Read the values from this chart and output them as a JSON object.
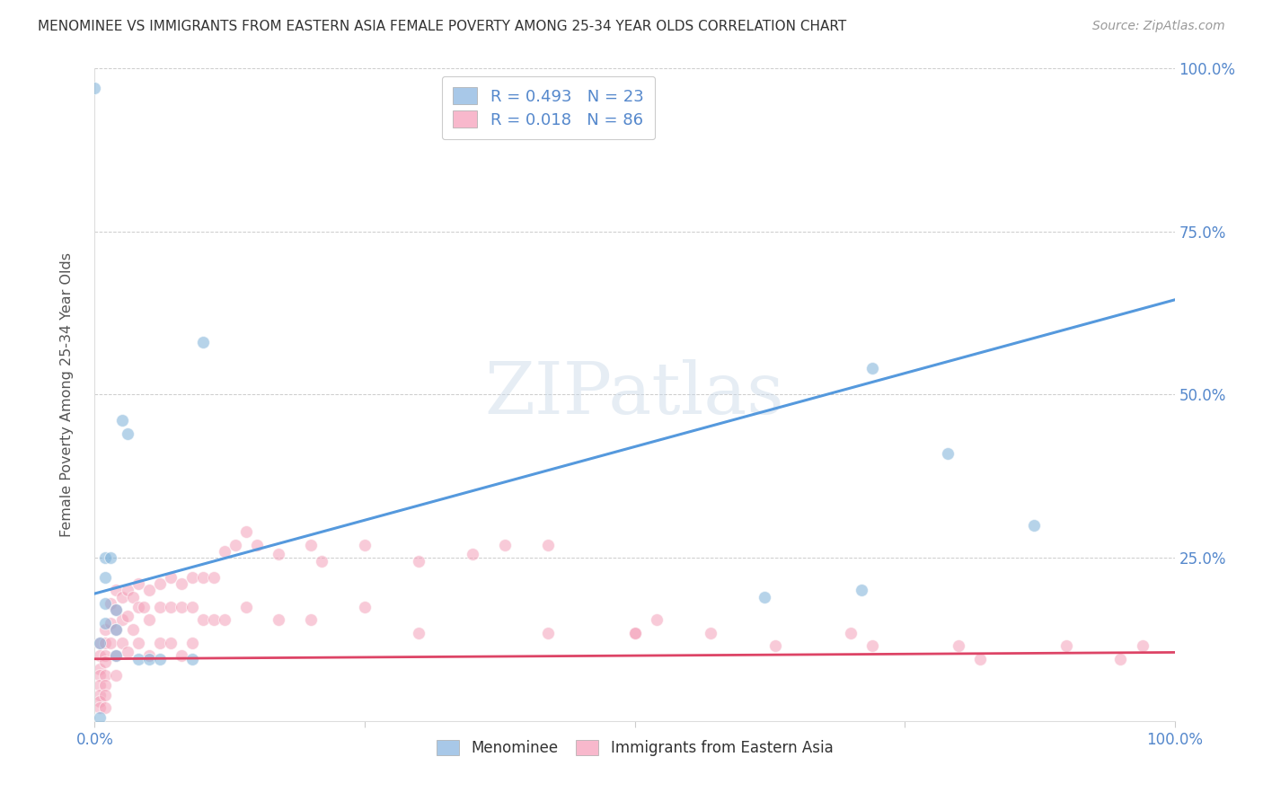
{
  "title": "MENOMINEE VS IMMIGRANTS FROM EASTERN ASIA FEMALE POVERTY AMONG 25-34 YEAR OLDS CORRELATION CHART",
  "source": "Source: ZipAtlas.com",
  "ylabel": "Female Poverty Among 25-34 Year Olds",
  "xlim": [
    0,
    1.0
  ],
  "ylim": [
    0,
    1.0
  ],
  "watermark": "ZIPatlas",
  "legend_color_1": "#a8c8e8",
  "legend_color_2": "#f8b8cc",
  "menominee_color": "#7ab0d8",
  "immigrants_color": "#f4a0b8",
  "blue_line_color": "#5599dd",
  "red_line_color": "#dd4466",
  "menominee_x": [
    0.005,
    0.005,
    0.01,
    0.01,
    0.01,
    0.01,
    0.015,
    0.02,
    0.02,
    0.02,
    0.025,
    0.03,
    0.04,
    0.05,
    0.06,
    0.09,
    0.1,
    0.62,
    0.71,
    0.72,
    0.79,
    0.87,
    0.0
  ],
  "menominee_y": [
    0.005,
    0.12,
    0.25,
    0.22,
    0.18,
    0.15,
    0.25,
    0.17,
    0.14,
    0.1,
    0.46,
    0.44,
    0.095,
    0.095,
    0.095,
    0.095,
    0.58,
    0.19,
    0.2,
    0.54,
    0.41,
    0.3,
    0.97
  ],
  "immigrants_x": [
    0.005,
    0.005,
    0.005,
    0.005,
    0.005,
    0.005,
    0.005,
    0.005,
    0.01,
    0.01,
    0.01,
    0.01,
    0.01,
    0.01,
    0.01,
    0.01,
    0.015,
    0.015,
    0.015,
    0.02,
    0.02,
    0.02,
    0.02,
    0.02,
    0.025,
    0.025,
    0.025,
    0.03,
    0.03,
    0.03,
    0.035,
    0.035,
    0.04,
    0.04,
    0.04,
    0.045,
    0.05,
    0.05,
    0.05,
    0.06,
    0.06,
    0.06,
    0.07,
    0.07,
    0.07,
    0.08,
    0.08,
    0.08,
    0.09,
    0.09,
    0.09,
    0.1,
    0.1,
    0.11,
    0.11,
    0.12,
    0.12,
    0.13,
    0.14,
    0.14,
    0.15,
    0.17,
    0.17,
    0.2,
    0.2,
    0.21,
    0.25,
    0.25,
    0.3,
    0.3,
    0.35,
    0.38,
    0.42,
    0.42,
    0.5,
    0.52,
    0.57,
    0.63,
    0.7,
    0.72,
    0.8,
    0.82,
    0.9,
    0.95,
    0.97,
    0.5
  ],
  "immigrants_y": [
    0.12,
    0.1,
    0.08,
    0.07,
    0.055,
    0.04,
    0.03,
    0.02,
    0.14,
    0.12,
    0.1,
    0.09,
    0.07,
    0.055,
    0.04,
    0.02,
    0.18,
    0.15,
    0.12,
    0.2,
    0.17,
    0.14,
    0.1,
    0.07,
    0.19,
    0.155,
    0.12,
    0.2,
    0.16,
    0.105,
    0.19,
    0.14,
    0.21,
    0.175,
    0.12,
    0.175,
    0.2,
    0.155,
    0.1,
    0.21,
    0.175,
    0.12,
    0.22,
    0.175,
    0.12,
    0.21,
    0.175,
    0.1,
    0.22,
    0.175,
    0.12,
    0.22,
    0.155,
    0.22,
    0.155,
    0.26,
    0.155,
    0.27,
    0.29,
    0.175,
    0.27,
    0.255,
    0.155,
    0.27,
    0.155,
    0.245,
    0.27,
    0.175,
    0.245,
    0.135,
    0.255,
    0.27,
    0.27,
    0.135,
    0.135,
    0.155,
    0.135,
    0.115,
    0.135,
    0.115,
    0.115,
    0.095,
    0.115,
    0.095,
    0.115,
    0.135
  ],
  "blue_line_x": [
    0.0,
    1.0
  ],
  "blue_line_y": [
    0.195,
    0.645
  ],
  "red_line_x": [
    0.0,
    1.0
  ],
  "red_line_y": [
    0.095,
    0.105
  ],
  "marker_size": 100
}
